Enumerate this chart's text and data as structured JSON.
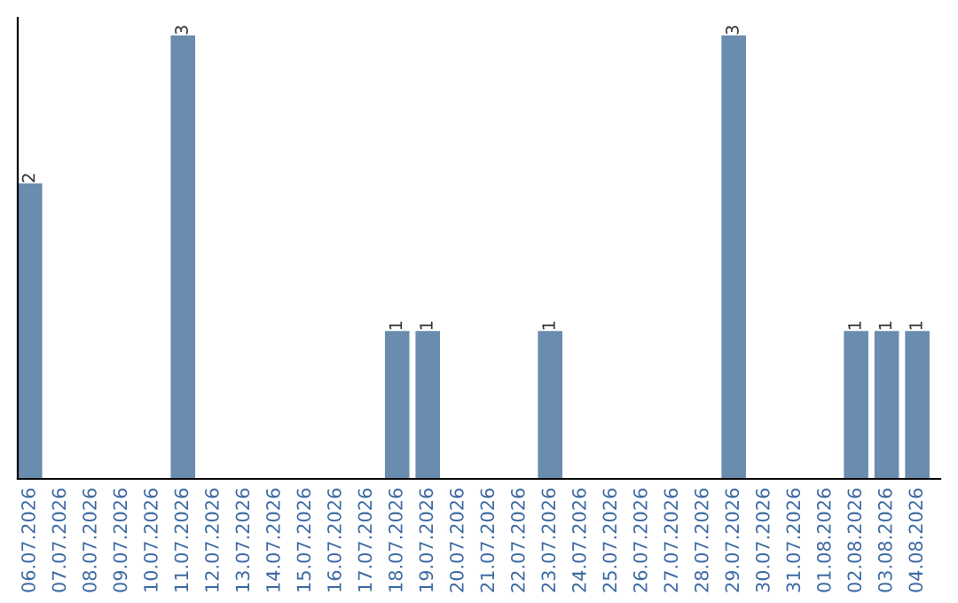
{
  "chart_data": {
    "type": "bar",
    "categories": [
      "06.07.2026",
      "07.07.2026",
      "08.07.2026",
      "09.07.2026",
      "10.07.2026",
      "11.07.2026",
      "12.07.2026",
      "13.07.2026",
      "14.07.2026",
      "15.07.2026",
      "16.07.2026",
      "17.07.2026",
      "18.07.2026",
      "19.07.2026",
      "20.07.2026",
      "21.07.2026",
      "22.07.2026",
      "23.07.2026",
      "24.07.2026",
      "25.07.2026",
      "26.07.2026",
      "27.07.2026",
      "28.07.2026",
      "29.07.2026",
      "30.07.2026",
      "31.07.2026",
      "01.08.2026",
      "02.08.2026",
      "03.08.2026",
      "04.08.2026"
    ],
    "values": [
      2,
      0,
      0,
      0,
      0,
      3,
      0,
      0,
      0,
      0,
      0,
      0,
      1,
      1,
      0,
      0,
      0,
      1,
      0,
      0,
      0,
      0,
      0,
      3,
      0,
      0,
      0,
      1,
      1,
      1
    ],
    "value_labels": [
      "2",
      null,
      null,
      null,
      null,
      "3",
      null,
      null,
      null,
      null,
      null,
      null,
      "1",
      "1",
      null,
      null,
      null,
      "1",
      null,
      null,
      null,
      null,
      null,
      "3",
      null,
      null,
      null,
      "1",
      "1",
      "1"
    ],
    "color": "#6a8caf",
    "tick_labels": "x",
    "grid": false,
    "legend": false
  }
}
